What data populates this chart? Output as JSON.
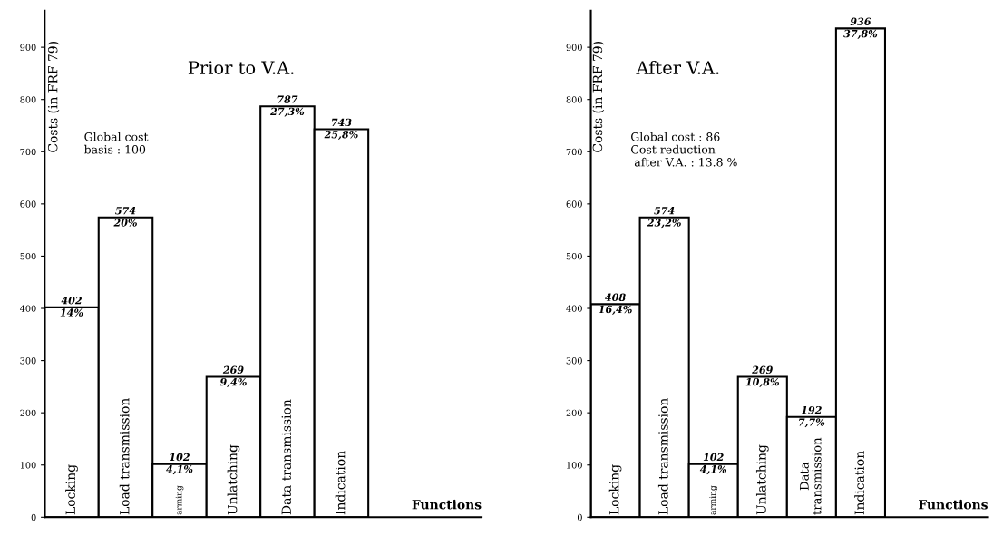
{
  "chart_data": [
    {
      "type": "bar",
      "title": "Prior to V.A.",
      "ylabel": "Costs (in FRF 79)",
      "xlabel": "Functions",
      "categories": [
        "Locking",
        "Load transmission",
        "arming",
        "Unlatching",
        "Data transmission",
        "Indication"
      ],
      "values": [
        402,
        574,
        102,
        269,
        787,
        743
      ],
      "value_labels": [
        "402\n14%",
        "574\n20%",
        "102\n4,1%",
        "269\n9,4%",
        "787\n27,3%",
        "743\n25,8%"
      ],
      "color": "#ffffff",
      "ylim": [
        0,
        970
      ],
      "yticks": [
        0,
        100,
        200,
        300,
        400,
        500,
        600,
        700,
        800,
        900
      ],
      "annotations": [
        "Global cost\nbasis : 100"
      ],
      "grid": false,
      "legend": false
    },
    {
      "type": "bar",
      "title": "After V.A.",
      "ylabel": "Costs (in FRF 79)",
      "xlabel": "Functions",
      "categories": [
        "Locking",
        "Load transmission",
        "arming",
        "Unlatching",
        "Data\ntransmission",
        "Indication"
      ],
      "values": [
        408,
        574,
        102,
        269,
        192,
        936
      ],
      "value_labels": [
        "408\n16,4%",
        "574\n23,2%",
        "102\n4,1%",
        "269\n10,8%",
        "192\n7,7%",
        "936\n37,8%"
      ],
      "color": "#ffffff",
      "ylim": [
        0,
        970
      ],
      "yticks": [
        0,
        100,
        200,
        300,
        400,
        500,
        600,
        700,
        800,
        900
      ],
      "annotations": [
        "Global cost : 86\nCost reduction\n after V.A. : 13.8 %"
      ],
      "grid": false,
      "legend": false
    }
  ]
}
